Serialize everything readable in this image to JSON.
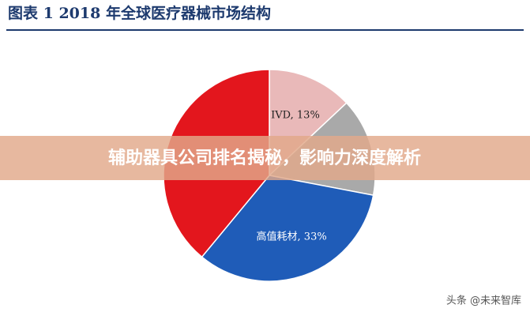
{
  "chart_data": {
    "type": "pie",
    "title": "图表 1   2018 年全球医疗器械市场结构",
    "values": [
      13,
      15,
      33,
      39
    ],
    "value_labels": [
      "IVD, 13%",
      null,
      "高值耗材, 33%",
      null
    ],
    "colors": [
      "#e9b9b9",
      "#a9a9a9",
      "#1f5cb8",
      "#e3161d"
    ]
  },
  "banner": "辅助器具公司排名揭秘，影响力深度解析",
  "watermark": "头条 @未来智库"
}
